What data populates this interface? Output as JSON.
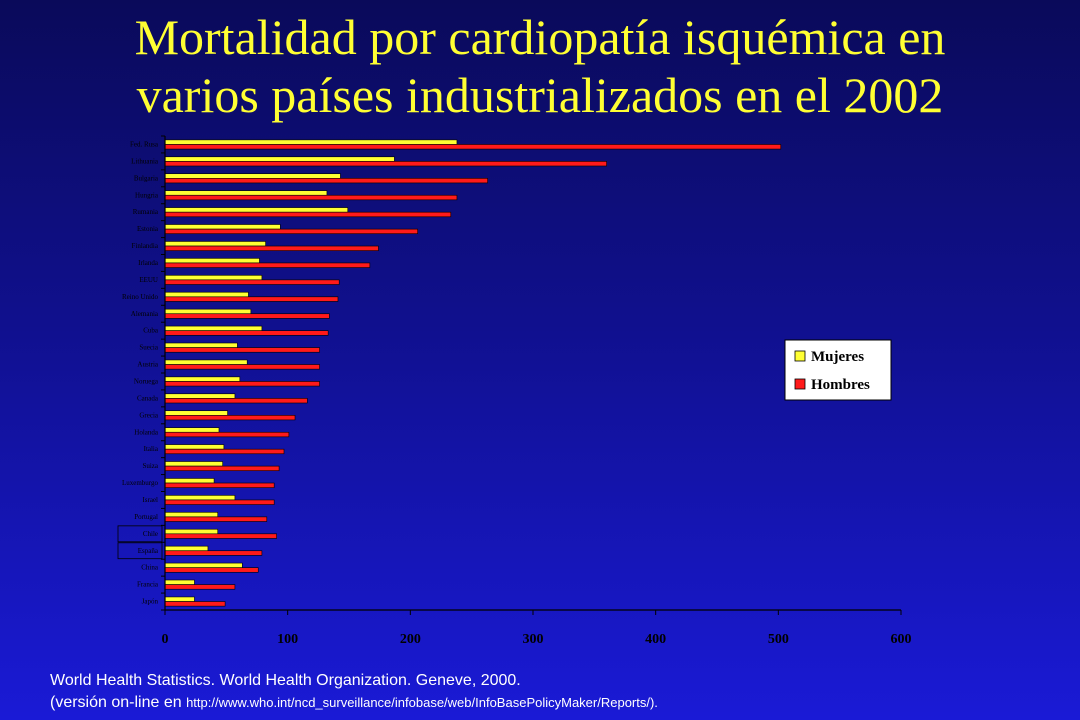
{
  "title": {
    "line1": "Mortalidad por cardiopatía isquémica en",
    "line2": "varios países industrializados en el 2002"
  },
  "colors": {
    "mujeres": "#ffff33",
    "hombres": "#ff1a1a",
    "axis": "#000000",
    "plot_bg": "#ffffff",
    "title": "#ffff33"
  },
  "chart_data": {
    "type": "bar",
    "orientation": "horizontal",
    "title": "",
    "xlabel": "",
    "ylabel": "",
    "xlim": [
      0,
      600
    ],
    "x_ticks": [
      0,
      100,
      200,
      300,
      400,
      500,
      600
    ],
    "grid": false,
    "legend_position": "right",
    "categories": [
      "Fed. Rusa",
      "Lithuania",
      "Bulgaria",
      "Hungria",
      "Rumania",
      "Estonia",
      "Finlandia",
      "Irlanda",
      "EEUU",
      "Reino Unido",
      "Alemania",
      "Cuba",
      "Suecia",
      "Austria",
      "Noruega",
      "Canada",
      "Grecia",
      "Holanda",
      "Italia",
      "Suiza",
      "Luxemburgo",
      "Israel",
      "Portugal",
      "Chile",
      "España",
      "China",
      "Francia",
      "Japón"
    ],
    "highlighted_categories": [
      "Chile",
      "España"
    ],
    "series": [
      {
        "name": "Mujeres",
        "values": [
          238,
          187,
          143,
          132,
          149,
          94,
          82,
          77,
          79,
          68,
          70,
          79,
          59,
          67,
          61,
          57,
          51,
          44,
          48,
          47,
          40,
          57,
          43,
          43,
          35,
          63,
          24,
          24
        ]
      },
      {
        "name": "Hombres",
        "values": [
          502,
          360,
          263,
          238,
          233,
          206,
          174,
          167,
          142,
          141,
          134,
          133,
          126,
          126,
          126,
          116,
          106,
          101,
          97,
          93,
          89,
          89,
          83,
          91,
          79,
          76,
          57,
          49
        ]
      }
    ]
  },
  "source": {
    "line1": "World Health Statistics. World Health Organization. Geneve, 2000.",
    "line2_prefix": "(versión on-line en ",
    "line2_url": "http://www.who.int/ncd_surveillance/infobase/web/InfoBasePolicyMaker/Reports/).",
    "line2_suffix": ""
  }
}
